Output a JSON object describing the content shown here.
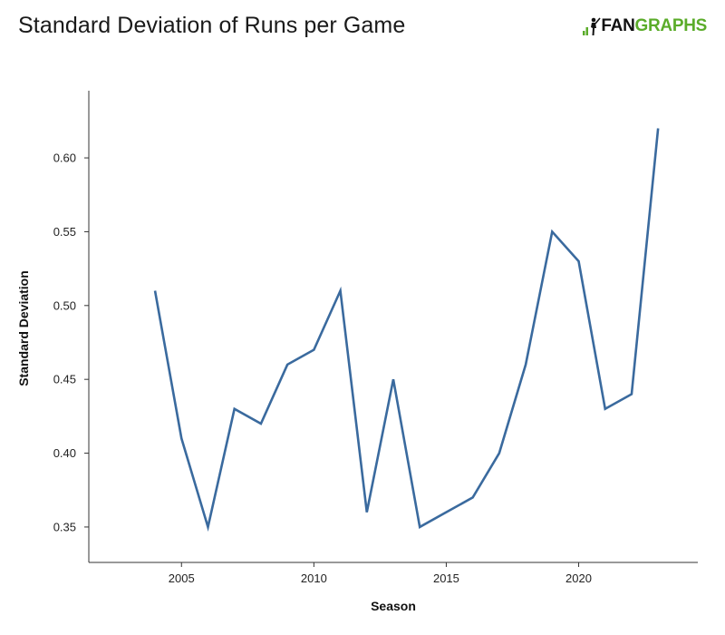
{
  "title": "Standard Deviation of Runs per Game",
  "logo": {
    "fan": "FAN",
    "graphs": "GRAPHS",
    "icon": "fangraphs-bars-batter-icon"
  },
  "colors": {
    "line": "#3a6a9e",
    "axis": "#333333",
    "brand_green": "#5bac2a"
  },
  "chart_data": {
    "type": "line",
    "title": "Standard Deviation of Runs per Game",
    "xlabel": "Season",
    "ylabel": "Standard Deviation",
    "xlim": [
      2001.5,
      2024.5
    ],
    "ylim": [
      0.326,
      0.6455
    ],
    "x_ticks": [
      2005,
      2010,
      2015,
      2020
    ],
    "y_ticks": [
      0.35,
      0.4,
      0.45,
      0.5,
      0.55,
      0.6
    ],
    "y_tick_labels": [
      "0.35",
      "0.40",
      "0.45",
      "0.50",
      "0.55",
      "0.60"
    ],
    "grid": false,
    "series": [
      {
        "x": [
          2004,
          2005,
          2006,
          2007,
          2008,
          2009,
          2010,
          2011,
          2012,
          2013,
          2014,
          2015,
          2016,
          2017,
          2018,
          2019,
          2020,
          2021,
          2022,
          2023
        ],
        "values": [
          0.51,
          0.41,
          0.35,
          0.43,
          0.42,
          0.46,
          0.47,
          0.51,
          0.36,
          0.45,
          0.35,
          0.36,
          0.37,
          0.4,
          0.46,
          0.55,
          0.53,
          0.43,
          0.44,
          0.62
        ]
      }
    ]
  }
}
